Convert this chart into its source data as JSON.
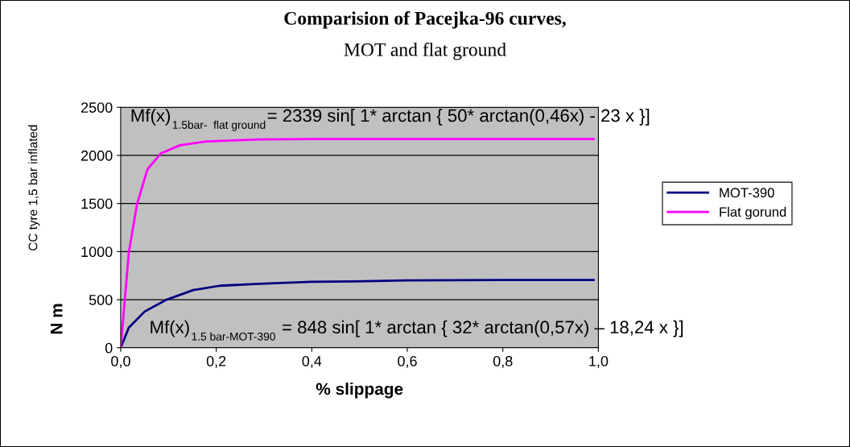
{
  "chart_data": {
    "type": "line",
    "title": "Comparision of Pacejka-96 curves,",
    "subtitle": "MOT and flat ground",
    "xlabel": "% slippage",
    "ylabel": "N m",
    "annotations": [
      "CC tyre 1,5 bar inflated",
      "Mf(x)$_{1.5bar-  flat ground}$= 2339 sin[ 1* arctan { 50* arctan(0,46x) - 23 x }]",
      "Mf(x)$_{1.5 bar-MOT-390}$ = 848 sin[ 1* arctan { 32* arctan(0,57x) – 18,24 x }]"
    ],
    "series": [
      {
        "name": "MOT-390",
        "color": "#000080",
        "x": [
          0,
          0.017,
          0.05,
          0.096,
          0.152,
          0.208,
          0.29,
          0.4,
          0.49,
          0.6,
          0.8,
          0.99
        ],
        "values": [
          0,
          210,
          376,
          500,
          600,
          645,
          665,
          685,
          690,
          700,
          705,
          705
        ]
      },
      {
        "name": "Flat gorund",
        "color": "#ff00ff",
        "x": [
          0,
          0.017,
          0.034,
          0.056,
          0.084,
          0.124,
          0.18,
          0.29,
          0.4,
          0.6,
          0.8,
          0.99
        ],
        "values": [
          0,
          990,
          1490,
          1855,
          2020,
          2105,
          2145,
          2165,
          2170,
          2170,
          2170,
          2170
        ]
      }
    ],
    "xlim": [
      0,
      1
    ],
    "xticks": [
      {
        "value": 0,
        "label": "0,0"
      },
      {
        "value": 0.2,
        "label": "0,2"
      },
      {
        "value": 0.4,
        "label": "0,4"
      },
      {
        "value": 0.6,
        "label": "0,6"
      },
      {
        "value": 0.8,
        "label": "0,8"
      },
      {
        "value": 1,
        "label": "1,0"
      }
    ],
    "ylim": [
      0,
      2500
    ],
    "yticks": [
      0,
      500,
      1000,
      1500,
      2000,
      2500
    ],
    "grid": "y",
    "legend": "right",
    "marker": "none",
    "line_style": "solid"
  }
}
